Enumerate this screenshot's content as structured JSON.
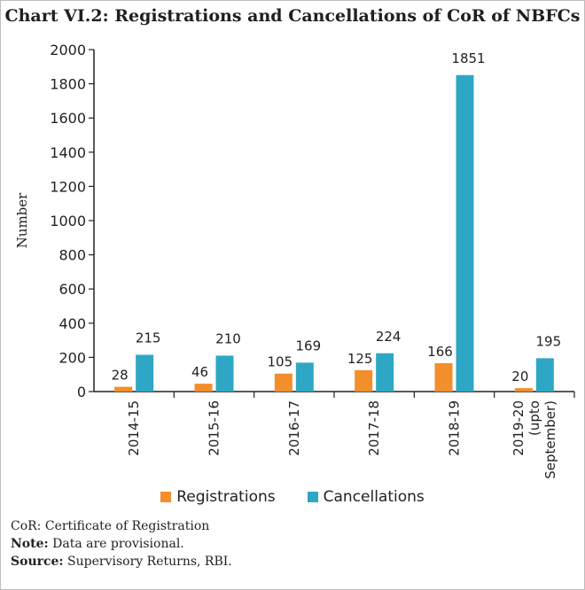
{
  "title": "Chart VI.2: Registrations and Cancellations of CoR of NBFCs",
  "colors": {
    "registrations": "#f28e2b",
    "cancellations": "#2ea7c4"
  },
  "chart_data": {
    "type": "bar",
    "title": "Chart VI.2: Registrations and Cancellations of CoR of NBFCs",
    "xlabel": "",
    "ylabel": "Number",
    "ylim": [
      0,
      2000
    ],
    "yticks": [
      "0",
      "200",
      "400",
      "600",
      "800",
      "1000",
      "1200",
      "1400",
      "1600",
      "1800",
      "2000"
    ],
    "categories": [
      [
        "2014-15"
      ],
      [
        "2015-16"
      ],
      [
        "2016-17"
      ],
      [
        "2017-18"
      ],
      [
        "2018-19"
      ],
      [
        "2019-20",
        "(upto",
        "September)"
      ]
    ],
    "series": [
      {
        "name": "Registrations",
        "values": [
          28,
          46,
          105,
          125,
          166,
          20
        ]
      },
      {
        "name": "Cancellations",
        "values": [
          215,
          210,
          169,
          224,
          1851,
          195
        ]
      }
    ],
    "grid": false,
    "legend": "bottom"
  },
  "legend": {
    "registrations": "Registrations",
    "cancellations": "Cancellations"
  },
  "notes": {
    "cor_abbrev": "CoR:",
    "cor_text": " Certificate of Registration",
    "note_label": "Note:",
    "note_text": " Data are provisional.",
    "source_label": "Source:",
    "source_text": " Supervisory Returns, RBI."
  }
}
